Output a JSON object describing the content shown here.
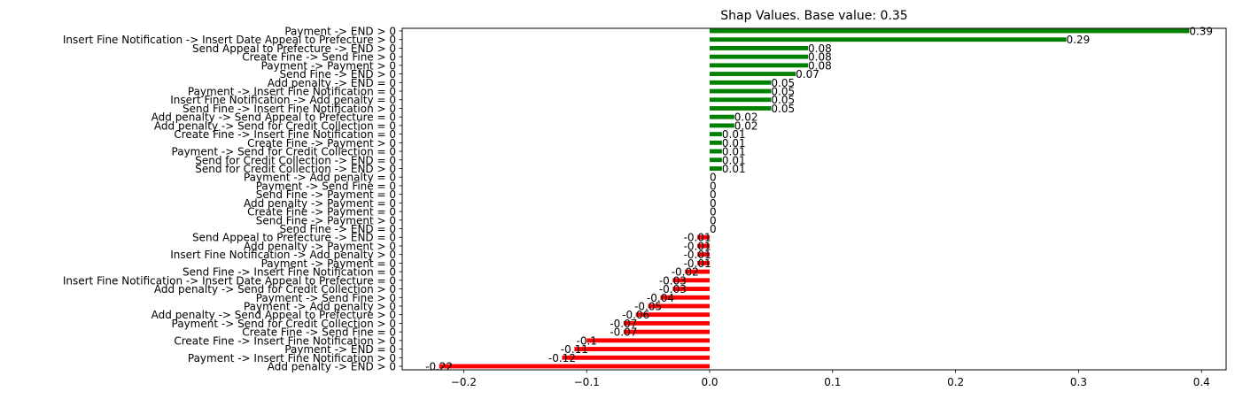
{
  "chart_data": {
    "type": "bar",
    "orientation": "horizontal",
    "title": "Shap Values. Base value: 0.35",
    "xlabel": "",
    "ylabel": "",
    "xlim": [
      -0.25,
      0.42
    ],
    "xticks": [
      -0.2,
      -0.1,
      0.0,
      0.1,
      0.2,
      0.3,
      0.4
    ],
    "xtick_labels": [
      "−0.2",
      "−0.1",
      "0.0",
      "0.1",
      "0.2",
      "0.3",
      "0.4"
    ],
    "grid": false,
    "colors": {
      "positive": "#008000",
      "negative": "#ff0000"
    },
    "bars": [
      {
        "label": "Payment -> END > 0",
        "value": 0.39,
        "value_label": "0.39"
      },
      {
        "label": "Insert Fine Notification -> Insert Date Appeal to Prefecture > 0",
        "value": 0.29,
        "value_label": "0.29"
      },
      {
        "label": "Send Appeal to Prefecture -> END > 0",
        "value": 0.08,
        "value_label": "0.08"
      },
      {
        "label": "Create Fine -> Send Fine > 0",
        "value": 0.08,
        "value_label": "0.08"
      },
      {
        "label": "Payment -> Payment > 0",
        "value": 0.08,
        "value_label": "0.08"
      },
      {
        "label": "Send Fine -> END > 0",
        "value": 0.07,
        "value_label": "0.07"
      },
      {
        "label": "Add penalty -> END = 0",
        "value": 0.05,
        "value_label": "0.05"
      },
      {
        "label": "Payment -> Insert Fine Notification = 0",
        "value": 0.05,
        "value_label": "0.05"
      },
      {
        "label": "Insert Fine Notification -> Add penalty = 0",
        "value": 0.05,
        "value_label": "0.05"
      },
      {
        "label": "Send Fine -> Insert Fine Notification > 0",
        "value": 0.05,
        "value_label": "0.05"
      },
      {
        "label": "Add penalty -> Send Appeal to Prefecture = 0",
        "value": 0.02,
        "value_label": "0.02"
      },
      {
        "label": "Add penalty -> Send for Credit Collection = 0",
        "value": 0.02,
        "value_label": "0.02"
      },
      {
        "label": "Create Fine -> Insert Fine Notification = 0",
        "value": 0.01,
        "value_label": "0.01"
      },
      {
        "label": "Create Fine -> Payment > 0",
        "value": 0.01,
        "value_label": "0.01"
      },
      {
        "label": "Payment -> Send for Credit Collection = 0",
        "value": 0.01,
        "value_label": "0.01"
      },
      {
        "label": "Send for Credit Collection -> END = 0",
        "value": 0.01,
        "value_label": "0.01"
      },
      {
        "label": "Send for Credit Collection -> END > 0",
        "value": 0.01,
        "value_label": "0.01"
      },
      {
        "label": "Payment -> Add penalty = 0",
        "value": 0,
        "value_label": "0"
      },
      {
        "label": "Payment -> Send Fine = 0",
        "value": 0,
        "value_label": "0"
      },
      {
        "label": "Send Fine -> Payment = 0",
        "value": 0,
        "value_label": "0"
      },
      {
        "label": "Add penalty -> Payment = 0",
        "value": 0,
        "value_label": "0"
      },
      {
        "label": "Create Fine -> Payment = 0",
        "value": 0,
        "value_label": "0"
      },
      {
        "label": "Send Fine -> Payment > 0",
        "value": 0,
        "value_label": "0"
      },
      {
        "label": "Send Fine -> END = 0",
        "value": 0,
        "value_label": "0"
      },
      {
        "label": "Send Appeal to Prefecture -> END = 0",
        "value": -0.01,
        "value_label": "-0.01"
      },
      {
        "label": "Add penalty -> Payment > 0",
        "value": -0.01,
        "value_label": "-0.01"
      },
      {
        "label": "Insert Fine Notification -> Add penalty > 0",
        "value": -0.01,
        "value_label": "-0.01"
      },
      {
        "label": "Payment -> Payment = 0",
        "value": -0.01,
        "value_label": "-0.01"
      },
      {
        "label": "Send Fine -> Insert Fine Notification = 0",
        "value": -0.02,
        "value_label": "-0.02"
      },
      {
        "label": "Insert Fine Notification -> Insert Date Appeal to Prefecture = 0",
        "value": -0.03,
        "value_label": "-0.03"
      },
      {
        "label": "Add penalty -> Send for Credit Collection > 0",
        "value": -0.03,
        "value_label": "-0.03"
      },
      {
        "label": "Payment -> Send Fine > 0",
        "value": -0.04,
        "value_label": "-0.04"
      },
      {
        "label": "Payment -> Add penalty > 0",
        "value": -0.05,
        "value_label": "-0.05"
      },
      {
        "label": "Add penalty -> Send Appeal to Prefecture > 0",
        "value": -0.06,
        "value_label": "-0.06"
      },
      {
        "label": "Payment -> Send for Credit Collection > 0",
        "value": -0.07,
        "value_label": "-0.07"
      },
      {
        "label": "Create Fine -> Send Fine = 0",
        "value": -0.07,
        "value_label": "-0.07"
      },
      {
        "label": "Create Fine -> Insert Fine Notification > 0",
        "value": -0.1,
        "value_label": "-0.1"
      },
      {
        "label": "Payment -> END = 0",
        "value": -0.11,
        "value_label": "-0.11"
      },
      {
        "label": "Payment -> Insert Fine Notification > 0",
        "value": -0.12,
        "value_label": "-0.12"
      },
      {
        "label": "Add penalty -> END > 0",
        "value": -0.22,
        "value_label": "-0.22"
      }
    ]
  }
}
